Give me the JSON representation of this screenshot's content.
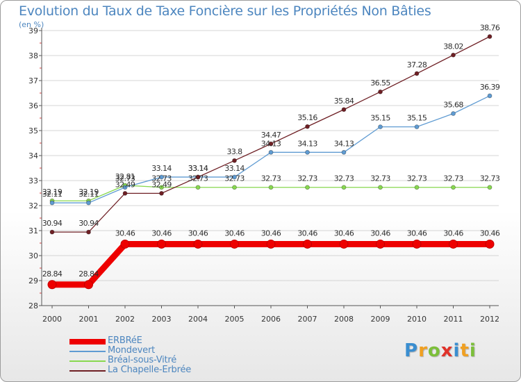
{
  "title": "Evolution du Taux de Taxe Foncière sur les Propriétés Non Bâties",
  "unit_label": "(en %)",
  "brand": {
    "letters": [
      "P",
      "r",
      "o",
      "x",
      "i",
      "t",
      "i"
    ],
    "colors": [
      "#3a8ed0",
      "#f0a022",
      "#7cbf3a",
      "#e0322a",
      "#3a8ed0",
      "#f0a022",
      "#7cbf3a"
    ]
  },
  "chart_data": {
    "type": "line",
    "title": "Evolution du Taux de Taxe Foncière sur les Propriétés Non Bâties",
    "ylabel": "(en %)",
    "xlabel": "",
    "ylim": [
      28,
      39
    ],
    "yticks": [
      28,
      29,
      30,
      31,
      32,
      33,
      34,
      35,
      36,
      37,
      38,
      39
    ],
    "grid": "horizontal",
    "categories": [
      "2000",
      "2001",
      "2002",
      "2003",
      "2004",
      "2005",
      "2006",
      "2007",
      "2008",
      "2009",
      "2010",
      "2011",
      "2012"
    ],
    "series": [
      {
        "name": "ERBRéE",
        "color": "#ee0000",
        "emphasis": true,
        "values": [
          28.84,
          28.84,
          30.46,
          30.46,
          30.46,
          30.46,
          30.46,
          30.46,
          30.46,
          30.46,
          30.46,
          30.46,
          30.46
        ],
        "labels": [
          "28.84",
          "28.84",
          "30.46",
          "30.46",
          "30.46",
          "30.46",
          "30.46",
          "30.46",
          "30.46",
          "30.46",
          "30.46",
          "30.46",
          "30.46"
        ]
      },
      {
        "name": "Mondevert",
        "color": "#5f9bd2",
        "values": [
          32.11,
          32.11,
          32.73,
          33.14,
          33.14,
          33.14,
          34.13,
          34.13,
          34.13,
          35.15,
          35.15,
          35.68,
          36.39
        ],
        "labels": [
          "32.11",
          "32.11",
          "32.73",
          "33.14",
          "33.14",
          "33.14",
          "34.13",
          "34.13",
          "34.13",
          "35.15",
          "35.15",
          "35.68",
          "36.39"
        ]
      },
      {
        "name": "Bréal-sous-Vitré",
        "color": "#88d84f",
        "values": [
          32.19,
          32.19,
          32.81,
          32.73,
          32.73,
          32.73,
          32.73,
          32.73,
          32.73,
          32.73,
          32.73,
          32.73,
          32.73
        ],
        "labels": [
          "32.19",
          "32.19",
          "32.81",
          "32.73",
          "32.73",
          "32.73",
          "32.73",
          "32.73",
          "32.73",
          "32.73",
          "32.73",
          "32.73",
          "32.73"
        ]
      },
      {
        "name": "La Chapelle-Erbrée",
        "color": "#6e1f24",
        "values": [
          30.94,
          30.94,
          32.49,
          32.49,
          33.14,
          33.8,
          34.47,
          35.16,
          35.84,
          36.55,
          37.28,
          38.02,
          38.76
        ],
        "labels": [
          "30.94",
          "30.94",
          "32.49",
          "32.49",
          "33.14",
          "33.8",
          "34.47",
          "35.16",
          "35.84",
          "36.55",
          "37.28",
          "38.02",
          "38.76"
        ]
      }
    ]
  }
}
